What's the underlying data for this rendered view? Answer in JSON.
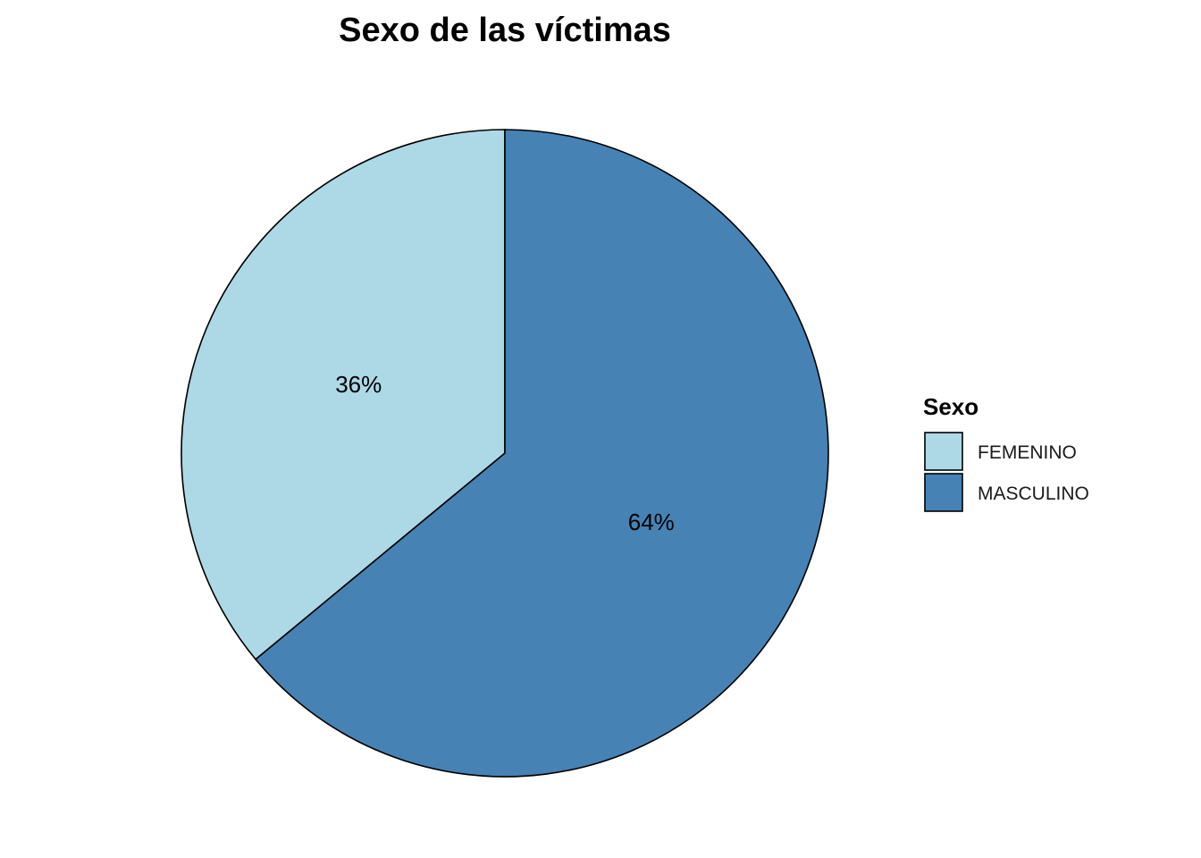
{
  "chart_data": {
    "type": "pie",
    "title": "Sexo de las víctimas",
    "legend": {
      "title": "Sexo",
      "placement": "right"
    },
    "slices": [
      {
        "name": "FEMENINO",
        "value": 36,
        "label": "36%",
        "color": "#ADD8E6"
      },
      {
        "name": "MASCULINO",
        "value": 64,
        "label": "64%",
        "color": "#4682B4"
      }
    ]
  }
}
